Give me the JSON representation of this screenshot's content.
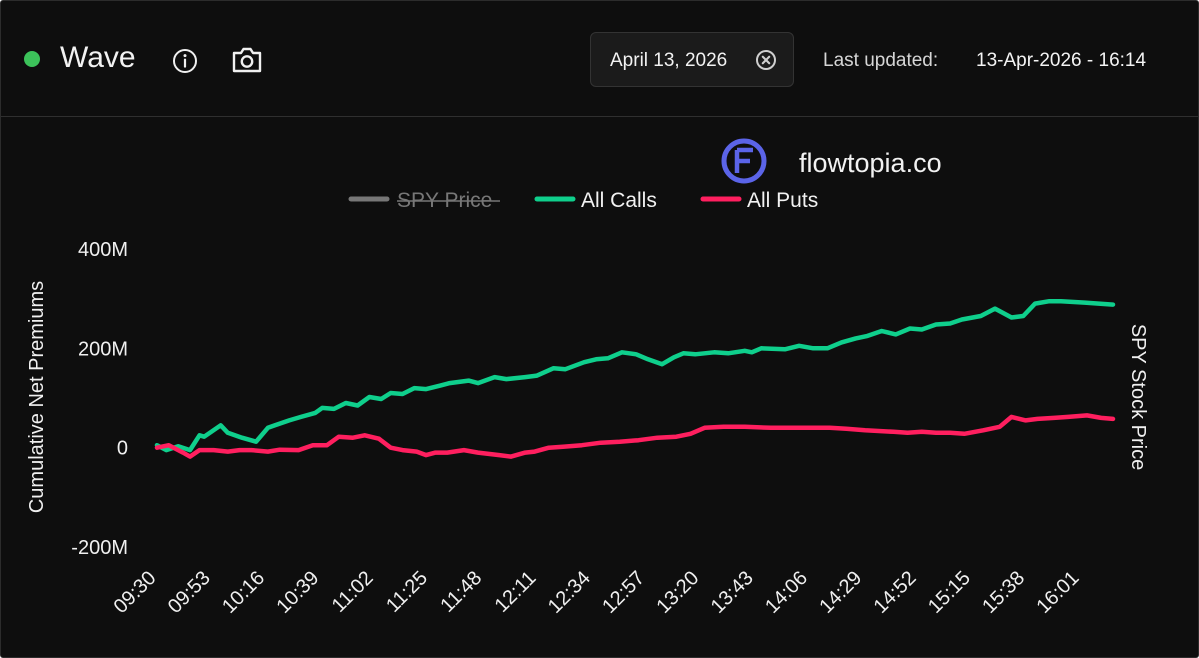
{
  "header": {
    "status_color": "#3cc25a",
    "title": "Wave",
    "icons": [
      "info-icon",
      "camera-icon",
      "clear-icon"
    ],
    "date": "April 13, 2026",
    "updated_label": "Last updated:",
    "updated_value": "13-Apr-2026 - 16:14"
  },
  "watermark": {
    "text": "flowtopia.co",
    "logo_color": "#5b64e8"
  },
  "chart_data": {
    "type": "line",
    "title": "",
    "xlabel": "",
    "ylabel": "Cumulative Net Premiums",
    "y2label": "SPY Stock Price",
    "ylim": [
      -200,
      400
    ],
    "yticks": [
      400,
      200,
      0,
      -200
    ],
    "ytick_labels": [
      "400M",
      "200M",
      "0",
      "-200M"
    ],
    "xlim": [
      0,
      405
    ],
    "xticks": [
      0,
      23,
      46,
      69,
      92,
      115,
      138,
      161,
      184,
      207,
      230,
      253,
      276,
      299,
      322,
      345,
      368,
      391
    ],
    "xtick_labels": [
      "09:30",
      "09:53",
      "10:16",
      "10:39",
      "11:02",
      "11:25",
      "11:48",
      "12:11",
      "12:34",
      "12:57",
      "13:20",
      "13:43",
      "14:06",
      "14:29",
      "14:52",
      "15:15",
      "15:38",
      "16:01"
    ],
    "legend_position": "top-center",
    "series": [
      {
        "name": "SPY Price",
        "color": "#777777",
        "hidden": true,
        "x": [],
        "values": []
      },
      {
        "name": "All Calls",
        "color": "#0fcf8c",
        "hidden": false,
        "x": [
          0,
          4,
          9,
          14,
          18,
          20,
          27,
          30,
          36,
          42,
          47,
          50,
          56,
          61,
          67,
          70,
          75,
          80,
          85,
          90,
          95,
          99,
          104,
          109,
          114,
          120,
          124,
          132,
          136,
          143,
          148,
          156,
          161,
          168,
          173,
          181,
          186,
          191,
          197,
          203,
          208,
          214,
          219,
          223,
          228,
          236,
          242,
          249,
          252,
          256,
          266,
          272,
          278,
          284,
          290,
          296,
          301,
          307,
          313,
          319,
          324,
          330,
          336,
          341,
          349,
          355,
          362,
          367,
          372,
          378,
          383,
          393,
          399,
          405
        ],
        "values": [
          5,
          -5,
          3,
          -5,
          25,
          22,
          45,
          30,
          20,
          12,
          40,
          45,
          55,
          62,
          70,
          80,
          78,
          90,
          85,
          102,
          98,
          110,
          108,
          120,
          118,
          125,
          130,
          135,
          130,
          142,
          138,
          142,
          145,
          160,
          158,
          172,
          178,
          180,
          192,
          188,
          178,
          168,
          182,
          190,
          188,
          192,
          190,
          195,
          192,
          200,
          198,
          205,
          200,
          200,
          212,
          220,
          225,
          235,
          228,
          240,
          238,
          248,
          250,
          258,
          265,
          280,
          262,
          265,
          290,
          295,
          295,
          292,
          290,
          288
        ]
      },
      {
        "name": "All Puts",
        "color": "#ff1f5f",
        "hidden": false,
        "x": [
          0,
          5,
          11,
          14,
          18,
          24,
          30,
          35,
          40,
          47,
          52,
          60,
          66,
          72,
          77,
          83,
          88,
          94,
          99,
          104,
          110,
          114,
          118,
          123,
          130,
          136,
          145,
          150,
          156,
          160,
          166,
          172,
          180,
          188,
          196,
          204,
          212,
          220,
          226,
          232,
          240,
          249,
          260,
          268,
          276,
          285,
          292,
          300,
          312,
          318,
          324,
          330,
          336,
          342,
          350,
          357,
          362,
          368,
          373,
          380,
          386,
          394,
          400,
          405
        ],
        "values": [
          0,
          5,
          -10,
          -18,
          -5,
          -5,
          -8,
          -5,
          -5,
          -8,
          -4,
          -5,
          5,
          5,
          22,
          20,
          25,
          18,
          0,
          -5,
          -8,
          -15,
          -10,
          -10,
          -5,
          -10,
          -15,
          -18,
          -10,
          -8,
          0,
          2,
          5,
          10,
          12,
          15,
          20,
          22,
          28,
          40,
          42,
          42,
          40,
          40,
          40,
          40,
          38,
          35,
          32,
          30,
          32,
          30,
          30,
          28,
          35,
          42,
          62,
          55,
          58,
          60,
          62,
          65,
          60,
          58
        ]
      }
    ]
  }
}
